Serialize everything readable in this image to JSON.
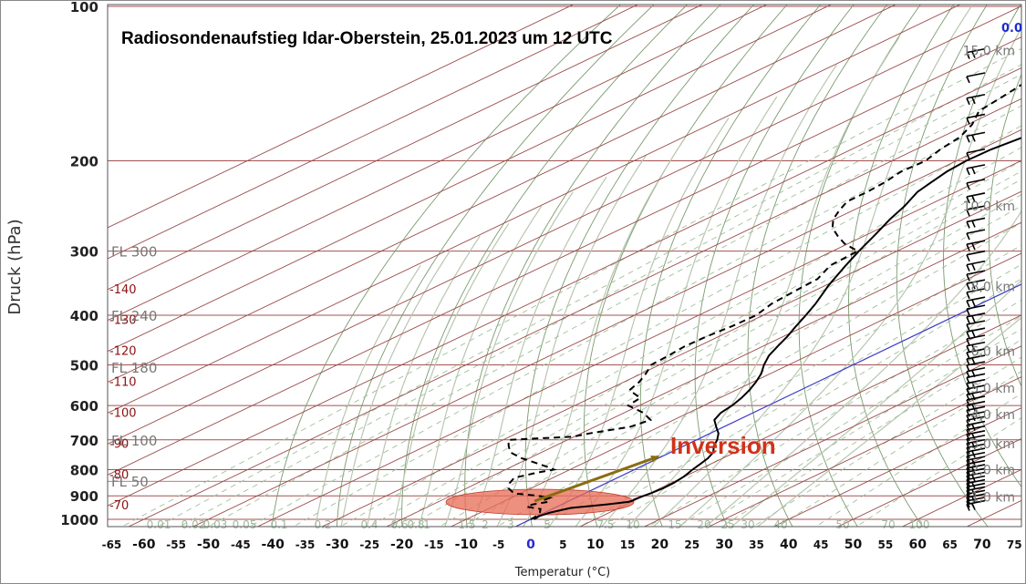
{
  "chart_data": {
    "type": "line",
    "title": "Radiosondenaufstieg Idar-Oberstein, 25.01.2023 um 12 UTC",
    "xlabel": "Temperatur (°C)",
    "ylabel": "Druck (hPa)",
    "xlim": [
      -65,
      75
    ],
    "ylim_pressure": [
      1000,
      100
    ],
    "y_scale": "log",
    "x_ticks": [
      "-65",
      "-60",
      "-55",
      "-50",
      "-45",
      "-40",
      "-35",
      "-30",
      "-25",
      "-20",
      "-15",
      "-10",
      "-5",
      "0",
      "5",
      "10",
      "15",
      "20",
      "25",
      "30",
      "35",
      "40",
      "45",
      "50",
      "55",
      "60",
      "65",
      "70",
      "75"
    ],
    "x_tick_values": [
      -65,
      -60,
      -55,
      -50,
      -45,
      -40,
      -35,
      -30,
      -25,
      -20,
      -15,
      -10,
      -5,
      0,
      5,
      10,
      15,
      20,
      25,
      30,
      35,
      40,
      45,
      50,
      55,
      60,
      65,
      70,
      75
    ],
    "y_ticks": [
      "100",
      "200",
      "300",
      "400",
      "500",
      "600",
      "700",
      "800",
      "900",
      "1000"
    ],
    "y_tick_values": [
      100,
      200,
      300,
      400,
      500,
      600,
      700,
      800,
      900,
      1000
    ],
    "skew_deg_per_decade": 166,
    "extra_isotherms": [
      -140,
      -130,
      -120,
      -110,
      -100,
      -90,
      -80,
      -70
    ],
    "extra_isotherm_labels": [
      "-140",
      "-130",
      "-120",
      "-110",
      "-100",
      "-90",
      "-80",
      "-70"
    ],
    "flight_levels": [
      {
        "label": "FL 300",
        "p": 300
      },
      {
        "label": "FL 240",
        "p": 400
      },
      {
        "label": "FL 180",
        "p": 505
      },
      {
        "label": "FL 100",
        "p": 700
      },
      {
        "label": "FL 50",
        "p": 843
      }
    ],
    "height_labels": [
      {
        "label": "15,0 km",
        "p": 122
      },
      {
        "label": "10,0 km",
        "p": 245
      },
      {
        "label": "8,0 km",
        "p": 352
      },
      {
        "label": "6,0 km",
        "p": 470
      },
      {
        "label": "5,0 km",
        "p": 555
      },
      {
        "label": "4,0 km",
        "p": 625
      },
      {
        "label": "3,0 km",
        "p": 712
      },
      {
        "label": "2,0 km",
        "p": 800
      },
      {
        "label": "1,0 km",
        "p": 905
      }
    ],
    "mixing_ratio_labels": [
      "0.01",
      "0.02",
      "0.03",
      "0.05",
      "0.1",
      "0.2",
      "0.4",
      "0.6",
      "0.8",
      "1",
      "1.5",
      "2",
      "3",
      "5",
      "7.5",
      "10",
      "15",
      "20",
      "25",
      "30",
      "40",
      "50",
      "70",
      "100"
    ],
    "mixing_ratio_values": [
      0.01,
      0.02,
      0.03,
      0.05,
      0.1,
      0.2,
      0.4,
      0.6,
      0.8,
      1,
      1.5,
      2,
      3,
      5,
      7.5,
      10,
      15,
      20,
      25,
      30,
      40,
      50,
      70,
      100
    ],
    "wind_top_value": "0.0",
    "series": [
      {
        "role": "temperature",
        "style": "solid",
        "points": [
          [
            1000,
            0.5
          ],
          [
            985,
            0.3
          ],
          [
            970,
            0.8
          ],
          [
            950,
            2.5
          ],
          [
            935,
            7
          ],
          [
            925,
            9.5
          ],
          [
            920,
            9.8
          ],
          [
            915,
            9.6
          ],
          [
            905,
            9.8
          ],
          [
            890,
            10.2
          ],
          [
            870,
            10.5
          ],
          [
            850,
            10.4
          ],
          [
            825,
            9.9
          ],
          [
            800,
            9.0
          ],
          [
            780,
            8.4
          ],
          [
            760,
            7.7
          ],
          [
            740,
            6.6
          ],
          [
            720,
            4.7
          ],
          [
            700,
            3.2
          ],
          [
            680,
            1.3
          ],
          [
            660,
            -1.2
          ],
          [
            640,
            -3.7
          ],
          [
            620,
            -5.0
          ],
          [
            600,
            -5.6
          ],
          [
            580,
            -6.6
          ],
          [
            560,
            -7.9
          ],
          [
            540,
            -9.5
          ],
          [
            520,
            -11.4
          ],
          [
            500,
            -13.8
          ],
          [
            480,
            -16.0
          ],
          [
            460,
            -17.7
          ],
          [
            440,
            -19.4
          ],
          [
            420,
            -21.4
          ],
          [
            400,
            -23.4
          ],
          [
            380,
            -25.6
          ],
          [
            350,
            -29.5
          ],
          [
            320,
            -33.3
          ],
          [
            300,
            -35.9
          ],
          [
            280,
            -38.5
          ],
          [
            260,
            -41.4
          ],
          [
            245,
            -43.4
          ],
          [
            230,
            -46.0
          ],
          [
            220,
            -47.0
          ],
          [
            210,
            -48.0
          ],
          [
            200,
            -48.5
          ],
          [
            190,
            -48.3
          ],
          [
            180,
            -47.3
          ],
          [
            170,
            -44.9
          ],
          [
            163,
            -40.4
          ],
          [
            158,
            -40.1
          ],
          [
            152,
            -40.3
          ],
          [
            146,
            -40.6
          ],
          [
            140,
            -41.3
          ],
          [
            133,
            -43.4
          ],
          [
            128,
            -44.7
          ],
          [
            124,
            -44.2
          ],
          [
            118,
            -45.6
          ],
          [
            110,
            -47.8
          ],
          [
            100,
            -50.0
          ]
        ]
      },
      {
        "role": "dewpoint",
        "style": "dashed",
        "points": [
          [
            1000,
            0.0
          ],
          [
            985,
            -0.2
          ],
          [
            970,
            -0.8
          ],
          [
            955,
            -1.8
          ],
          [
            945,
            -4.7
          ],
          [
            935,
            -4.5
          ],
          [
            925,
            -3.0
          ],
          [
            917,
            -4.2
          ],
          [
            908,
            -4.0
          ],
          [
            900,
            -6.5
          ],
          [
            890,
            -11.0
          ],
          [
            870,
            -13.5
          ],
          [
            850,
            -15.0
          ],
          [
            830,
            -16.0
          ],
          [
            810,
            -14.0
          ],
          [
            800,
            -12.5
          ],
          [
            790,
            -14.4
          ],
          [
            760,
            -21.2
          ],
          [
            740,
            -24.9
          ],
          [
            720,
            -27.1
          ],
          [
            700,
            -29.2
          ],
          [
            690,
            -20.2
          ],
          [
            680,
            -18.7
          ],
          [
            660,
            -14.5
          ],
          [
            640,
            -13.6
          ],
          [
            620,
            -17.0
          ],
          [
            600,
            -21.7
          ],
          [
            580,
            -22.3
          ],
          [
            560,
            -26.5
          ],
          [
            540,
            -27.6
          ],
          [
            520,
            -29.3
          ],
          [
            500,
            -31.3
          ],
          [
            480,
            -31.6
          ],
          [
            460,
            -32.1
          ],
          [
            440,
            -31.9
          ],
          [
            420,
            -31.3
          ],
          [
            400,
            -31.1
          ],
          [
            380,
            -32.4
          ],
          [
            360,
            -32.9
          ],
          [
            340,
            -33.3
          ],
          [
            320,
            -35.7
          ],
          [
            300,
            -36.1
          ],
          [
            290,
            -40.6
          ],
          [
            280,
            -44.2
          ],
          [
            270,
            -47.6
          ],
          [
            260,
            -50.2
          ],
          [
            250,
            -52.1
          ],
          [
            240,
            -53.8
          ],
          [
            230,
            -53.8
          ],
          [
            220,
            -54.2
          ],
          [
            210,
            -55.1
          ],
          [
            200,
            -54.8
          ],
          [
            190,
            -56.2
          ],
          [
            180,
            -57.1
          ],
          [
            170,
            -59.3
          ],
          [
            160,
            -62.6
          ],
          [
            150,
            -63.6
          ],
          [
            140,
            -64.8
          ],
          [
            130,
            -66.5
          ],
          [
            120,
            -68.0
          ],
          [
            115,
            -68.4
          ],
          [
            110,
            -69.4
          ],
          [
            105,
            -70.4
          ],
          [
            100,
            -71.5
          ]
        ]
      }
    ],
    "annotation": {
      "text": "Inversion",
      "color": "#d0321a",
      "arrow_color": "#8a6d10"
    },
    "highlight_ellipse_color": "#e86b56",
    "colors": {
      "isobar": "#a35252",
      "isotherm": "#9a4a4a",
      "dry_adiabat": "#7a9a6e",
      "moist_adiabat": "#b8c6b0",
      "mixing_ratio": "#9fc09a",
      "zero_isotherm": "#3a3ac8",
      "profile": "#000000",
      "frame": "#666666"
    }
  }
}
